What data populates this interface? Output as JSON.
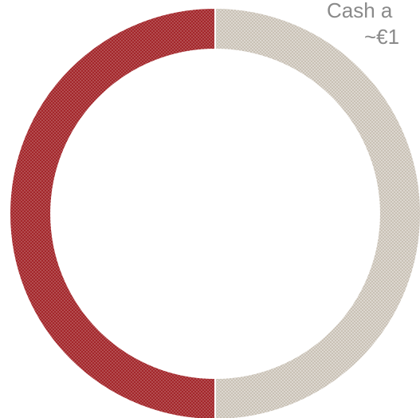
{
  "chart_data": {
    "type": "donut",
    "values": [
      50,
      50
    ],
    "colors": [
      "#c9c1b5",
      "#a3262a"
    ],
    "annotations": [
      "Cash a",
      "~€1"
    ],
    "annotation_color": "#8a8a8a"
  }
}
